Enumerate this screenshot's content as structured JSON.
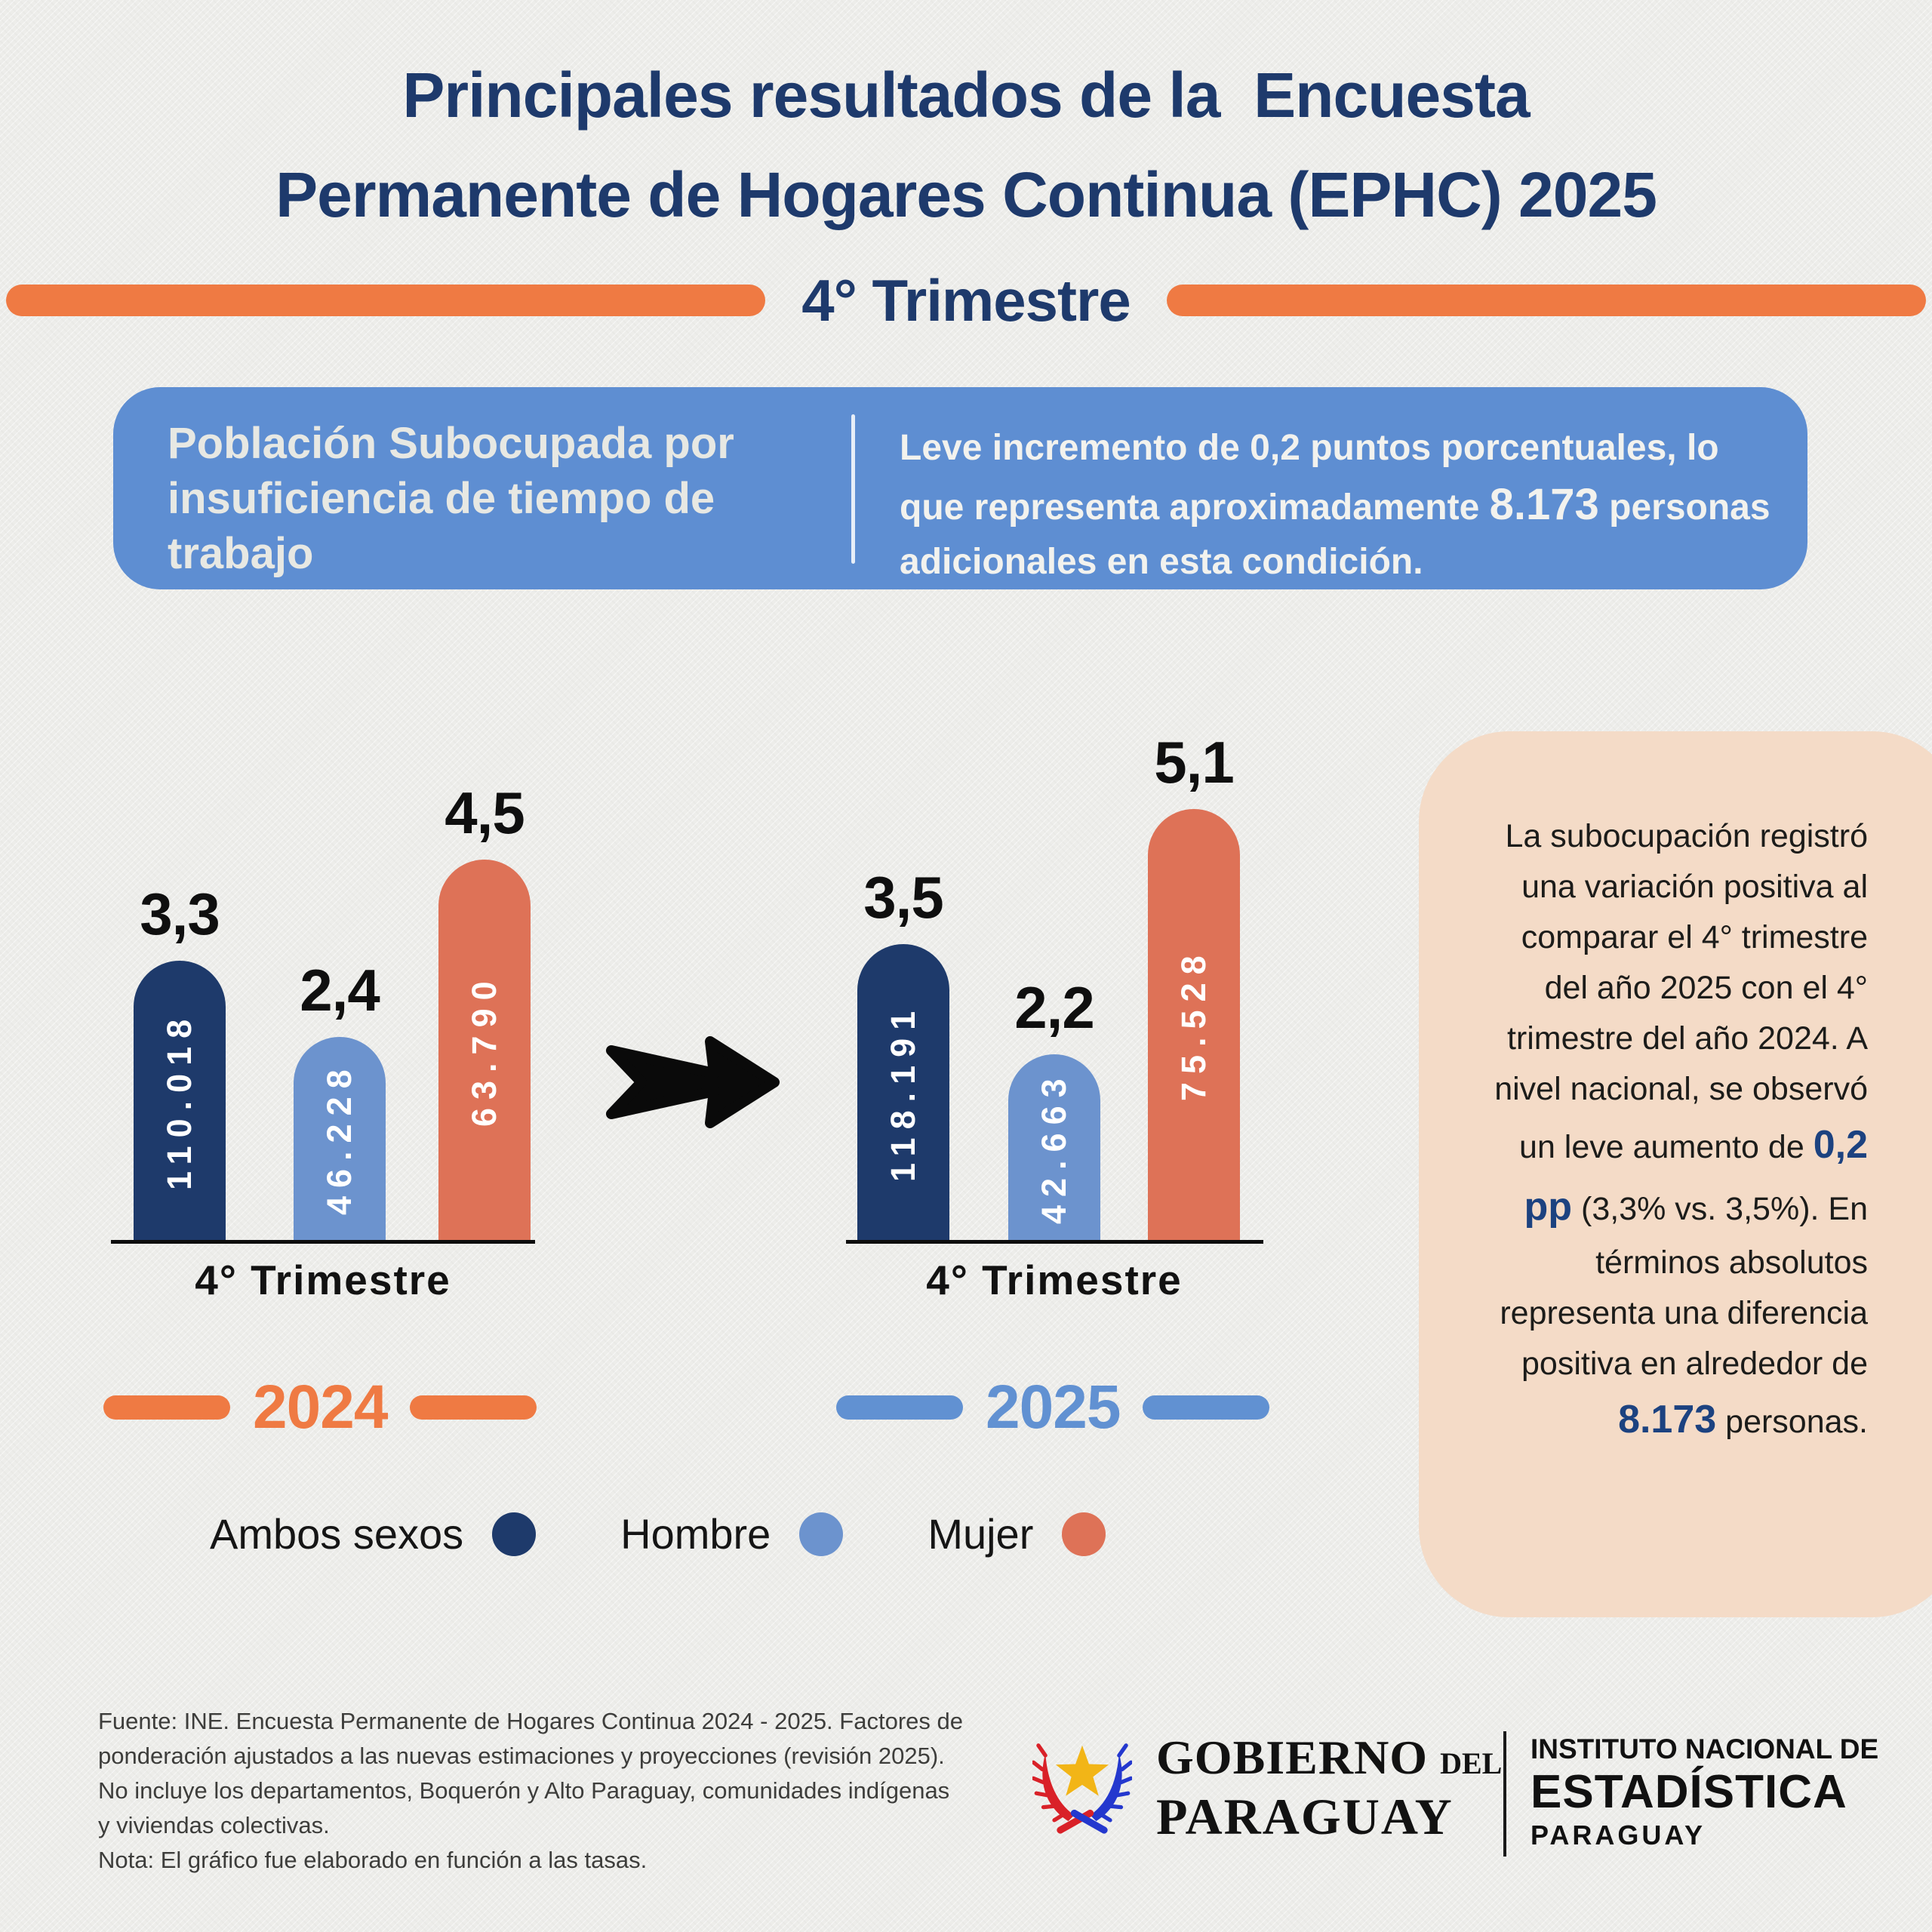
{
  "palette": {
    "navy": "#1E3A6B",
    "light_blue": "#6C93CE",
    "salmon": "#DE7257",
    "orange": "#EF7A43",
    "year_blue": "#6191D2",
    "box_blue": "#5E8ED2",
    "peach": "#F4DBC7",
    "background": "#EDEDEA",
    "title_navy": "#1E3A6C"
  },
  "header": {
    "title_line1": "Principales resultados de la  Encuesta",
    "title_line2": "Permanente de Hogares Continua (EPHC) 2025",
    "subtitle": "4° Trimestre"
  },
  "info_box": {
    "heading": "Población Subocupada por insuficiencia de tiempo de trabajo",
    "body_text1": "Leve incremento de 0,2 puntos porcentuales, lo que representa aproximadamente ",
    "body_bold": "8.173",
    "body_text2": " personas adicionales en esta condición."
  },
  "chart_data": [
    {
      "type": "bar",
      "year": "2024",
      "x_axis_label": "4° Trimestre",
      "categories": [
        "Ambos sexos",
        "Hombre",
        "Mujer"
      ],
      "values": [
        3.3,
        2.4,
        4.5
      ],
      "value_labels": [
        "3,3",
        "2,4",
        "4,5"
      ],
      "absolute_labels": [
        "110.018",
        "46.228",
        "63.790"
      ],
      "colors": [
        "#1E3A6B",
        "#6C93CE",
        "#DE7257"
      ],
      "ylim": [
        0,
        5.5
      ]
    },
    {
      "type": "bar",
      "year": "2025",
      "x_axis_label": "4° Trimestre",
      "categories": [
        "Ambos sexos",
        "Hombre",
        "Mujer"
      ],
      "values": [
        3.5,
        2.2,
        5.1
      ],
      "value_labels": [
        "3,5",
        "2,2",
        "5,1"
      ],
      "absolute_labels": [
        "118.191",
        "42.663",
        "75.528"
      ],
      "colors": [
        "#1E3A6B",
        "#6C93CE",
        "#DE7257"
      ],
      "ylim": [
        0,
        5.5
      ]
    }
  ],
  "years": {
    "left_label": "2024",
    "left_color": "#EF7A43",
    "right_label": "2025",
    "right_color": "#6191D2"
  },
  "legend": [
    {
      "label": "Ambos sexos",
      "color": "#1E3A6B"
    },
    {
      "label": "Hombre",
      "color": "#6C93CE"
    },
    {
      "label": "Mujer",
      "color": "#DE7257"
    }
  ],
  "note_box": {
    "text1": "La subocupación registró una variación positiva al comparar el 4° trimestre del año 2025 con el 4° trimestre del año 2024. A nivel nacional, se observó un leve aumento de ",
    "bold1": "0,2 pp",
    "text2": " (3,3% vs. 3,5%). En términos absolutos representa una diferencia positiva en alrededor de ",
    "bold2": "8.173",
    "text3": " personas."
  },
  "footer": {
    "lines": [
      "Fuente: INE. Encuesta Permanente de Hogares Continua 2024 - 2025. Factores de",
      "ponderación ajustados a las nuevas estimaciones y proyecciones (revisión 2025).",
      "No incluye los departamentos, Boquerón y Alto Paraguay, comunidades indígenas",
      "y viviendas colectivas.",
      "Nota: El gráfico fue elaborado en función a las tasas."
    ]
  },
  "logos": {
    "government": {
      "line1": "GOBIERNO",
      "line1_small": "del",
      "line2": "PARAGUAY"
    },
    "ine": {
      "line1": "INSTITUTO NACIONAL DE",
      "line2": "ESTADÍSTICA",
      "line3": "PARAGUAY"
    }
  }
}
